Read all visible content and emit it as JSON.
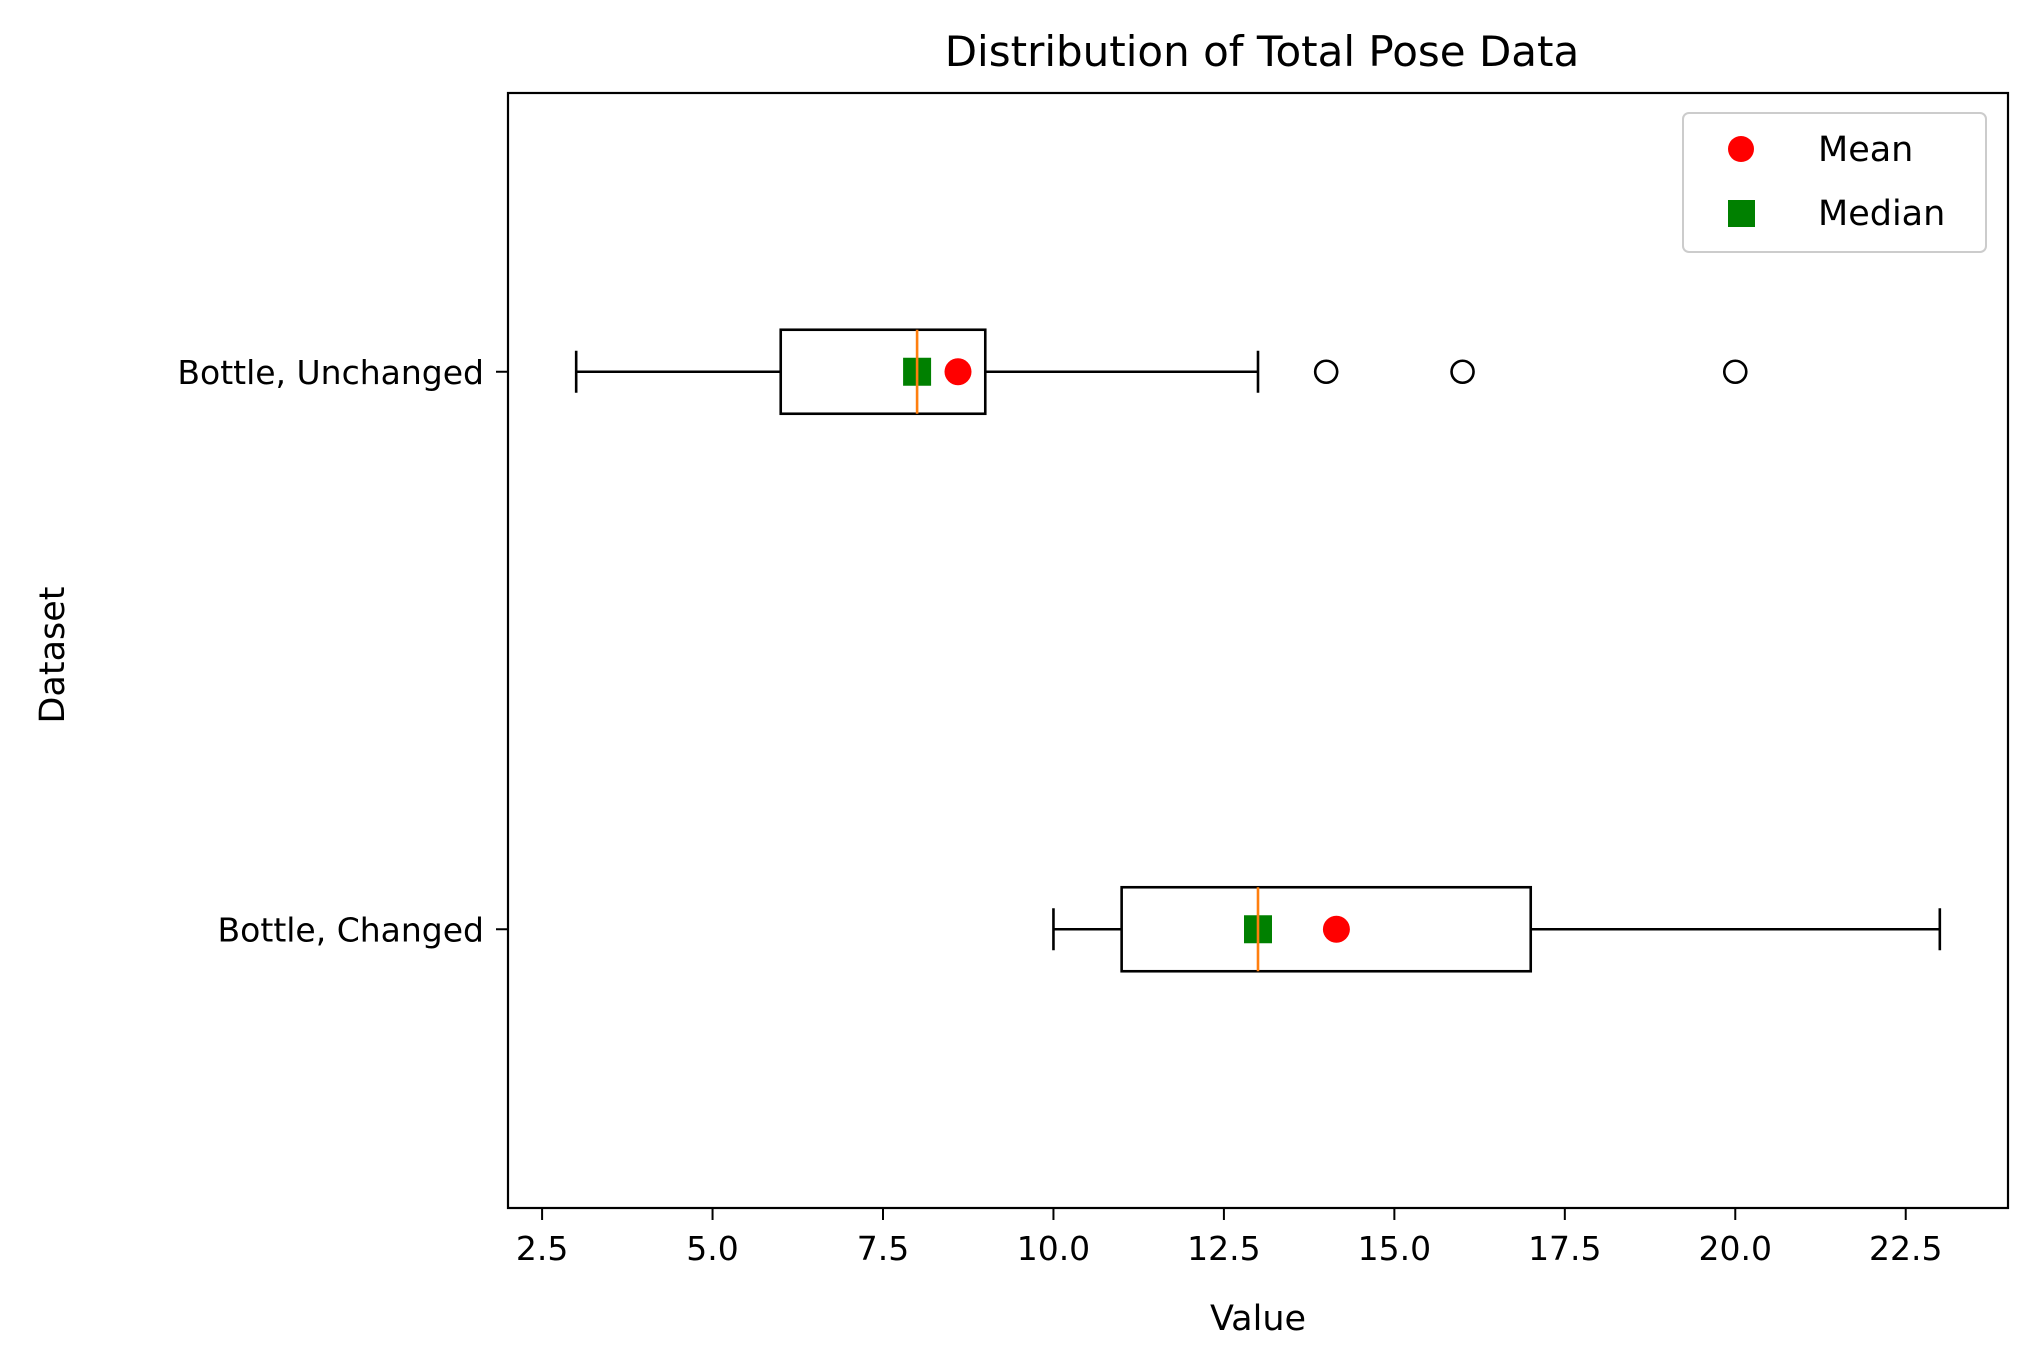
{
  "chart_data": {
    "type": "boxplot",
    "orientation": "horizontal",
    "title": "Distribution of Total Pose Data",
    "xlabel": "Value",
    "ylabel": "Dataset",
    "xlim": [
      2.0,
      24.0
    ],
    "x_ticks": [
      2.5,
      5.0,
      7.5,
      10.0,
      12.5,
      15.0,
      17.5,
      20.0,
      22.5
    ],
    "x_tick_labels": [
      "2.5",
      "5.0",
      "7.5",
      "10.0",
      "12.5",
      "15.0",
      "17.5",
      "20.0",
      "22.5"
    ],
    "grid": false,
    "legend_position": "top-right",
    "legend": [
      {
        "label": "Mean",
        "marker": "circle",
        "color": "#ff0000"
      },
      {
        "label": "Median",
        "marker": "square",
        "color": "#008000"
      }
    ],
    "median_line_color": "#ff7f0e",
    "series": [
      {
        "name": "Bottle, Unchanged",
        "whisker_low": 3.0,
        "q1": 6.0,
        "median": 8.0,
        "q3": 9.0,
        "whisker_high": 13.0,
        "mean": 8.6,
        "outliers": [
          14.0,
          16.0,
          20.0
        ]
      },
      {
        "name": "Bottle, Changed",
        "whisker_low": 10.0,
        "q1": 11.0,
        "median": 13.0,
        "q3": 17.0,
        "whisker_high": 23.0,
        "mean": 14.15,
        "outliers": []
      }
    ]
  }
}
